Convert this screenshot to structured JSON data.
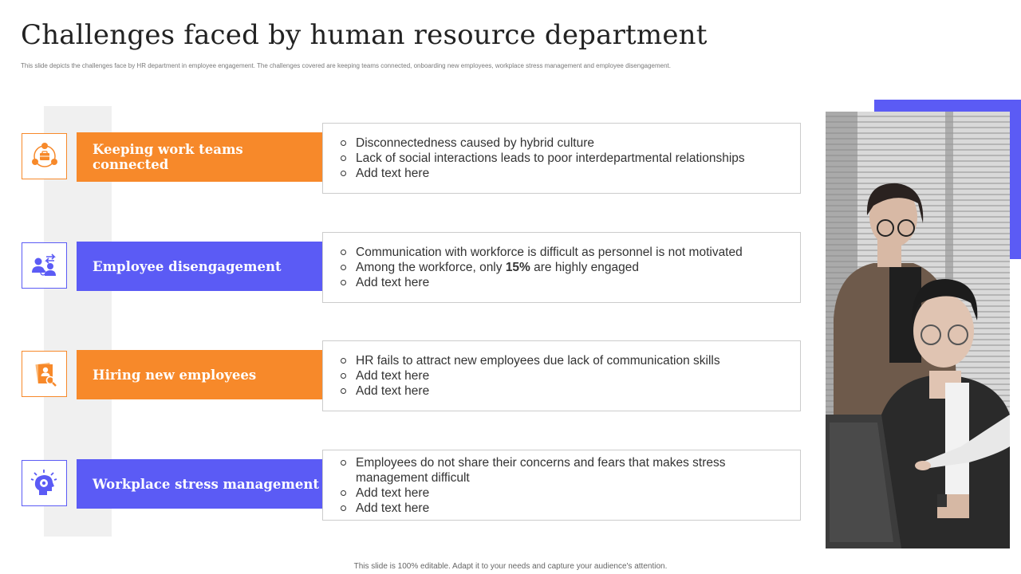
{
  "slide": {
    "title": "Challenges faced by human resource department",
    "subtitle": "This slide depicts the challenges face by HR department in employee engagement. The challenges covered are keeping teams connected, onboarding new employees, workplace stress management and employee disengagement.",
    "footer": "This slide is 100% editable. Adapt it to your needs and capture your audience's attention."
  },
  "colors": {
    "orange": "#f7892a",
    "blue": "#5b5bf5",
    "gray_strip": "#f0f0f0"
  },
  "challenges": [
    {
      "label": "Keeping work teams connected",
      "icon": "team-network-icon",
      "color": "orange",
      "points": [
        "Disconnectedness caused by hybrid culture",
        "Lack of social interactions leads to poor interdepartmental relationships",
        "Add text here"
      ]
    },
    {
      "label": "Employee disengagement",
      "icon": "people-exchange-icon",
      "color": "blue",
      "points": [
        "Communication with workforce is difficult as personnel is not motivated",
        {
          "before": "Among the workforce, only ",
          "bold": "15%",
          "after": " are highly engaged"
        },
        "Add text here"
      ]
    },
    {
      "label": "Hiring new employees",
      "icon": "resume-search-icon",
      "color": "orange",
      "points": [
        "HR fails to attract new employees due lack of communication skills",
        "Add text here",
        "Add text here"
      ]
    },
    {
      "label": "Workplace stress management",
      "icon": "stressed-head-gear-icon",
      "color": "blue",
      "points": [
        "Employees do not share their concerns and fears that makes stress management difficult",
        "Add text here",
        "Add text here"
      ]
    }
  ]
}
